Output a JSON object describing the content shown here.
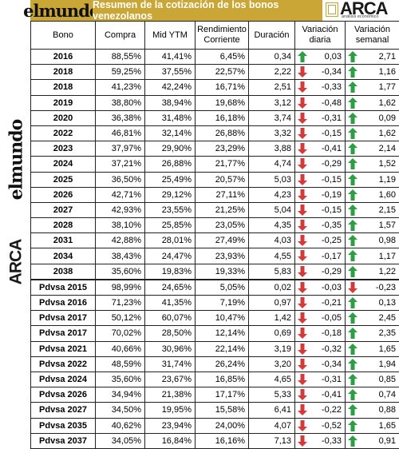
{
  "header": {
    "brand_left": "elmundo",
    "title": "Resumen de la cotización de los bonos venezolanos",
    "brand_right": "ARCA",
    "brand_right_sub": "análisis económico"
  },
  "columns": [
    "Bono",
    "Compra",
    "Mid YTM",
    "Rendimiento Corriente",
    "Duración",
    "Variación diaria",
    "Variación semanal"
  ],
  "rows": [
    {
      "bono": "2016",
      "compra": "88,55%",
      "mid_ytm": "41,41%",
      "rendimiento": "6,45%",
      "duracion": "0,34",
      "diaria": "0,03",
      "diaria_dir": "up",
      "semanal": "2,71",
      "semanal_dir": "up"
    },
    {
      "bono": "2018",
      "compra": "59,25%",
      "mid_ytm": "37,55%",
      "rendimiento": "22,57%",
      "duracion": "2,22",
      "diaria": "-0,34",
      "diaria_dir": "down",
      "semanal": "1,16",
      "semanal_dir": "up"
    },
    {
      "bono": "2018",
      "compra": "41,23%",
      "mid_ytm": "42,24%",
      "rendimiento": "16,71%",
      "duracion": "2,51",
      "diaria": "-0,33",
      "diaria_dir": "down",
      "semanal": "1,77",
      "semanal_dir": "up"
    },
    {
      "bono": "2019",
      "compra": "38,80%",
      "mid_ytm": "38,94%",
      "rendimiento": "19,68%",
      "duracion": "3,12",
      "diaria": "-0,48",
      "diaria_dir": "down",
      "semanal": "1,62",
      "semanal_dir": "up"
    },
    {
      "bono": "2020",
      "compra": "36,38%",
      "mid_ytm": "31,48%",
      "rendimiento": "16,18%",
      "duracion": "3,74",
      "diaria": "-0,31",
      "diaria_dir": "down",
      "semanal": "0,09",
      "semanal_dir": "up"
    },
    {
      "bono": "2022",
      "compra": "46,81%",
      "mid_ytm": "32,14%",
      "rendimiento": "26,88%",
      "duracion": "3,32",
      "diaria": "-0,15",
      "diaria_dir": "down",
      "semanal": "1,62",
      "semanal_dir": "up"
    },
    {
      "bono": "2023",
      "compra": "37,97%",
      "mid_ytm": "29,90%",
      "rendimiento": "23,29%",
      "duracion": "3,88",
      "diaria": "-0,41",
      "diaria_dir": "down",
      "semanal": "2,14",
      "semanal_dir": "up"
    },
    {
      "bono": "2024",
      "compra": "37,21%",
      "mid_ytm": "26,88%",
      "rendimiento": "21,77%",
      "duracion": "4,74",
      "diaria": "-0,29",
      "diaria_dir": "down",
      "semanal": "1,52",
      "semanal_dir": "up"
    },
    {
      "bono": "2025",
      "compra": "36,50%",
      "mid_ytm": "25,49%",
      "rendimiento": "20,57%",
      "duracion": "5,03",
      "diaria": "-0,15",
      "diaria_dir": "down",
      "semanal": "1,19",
      "semanal_dir": "up"
    },
    {
      "bono": "2026",
      "compra": "42,71%",
      "mid_ytm": "29,12%",
      "rendimiento": "27,11%",
      "duracion": "4,23",
      "diaria": "-0,19",
      "diaria_dir": "down",
      "semanal": "1,60",
      "semanal_dir": "up"
    },
    {
      "bono": "2027",
      "compra": "42,93%",
      "mid_ytm": "23,55%",
      "rendimiento": "21,25%",
      "duracion": "5,04",
      "diaria": "-0,15",
      "diaria_dir": "down",
      "semanal": "2,15",
      "semanal_dir": "up"
    },
    {
      "bono": "2028",
      "compra": "38,10%",
      "mid_ytm": "25,85%",
      "rendimiento": "23,05%",
      "duracion": "4,35",
      "diaria": "-0,35",
      "diaria_dir": "down",
      "semanal": "1,57",
      "semanal_dir": "up"
    },
    {
      "bono": "2031",
      "compra": "42,88%",
      "mid_ytm": "28,01%",
      "rendimiento": "27,49%",
      "duracion": "4,03",
      "diaria": "-0,25",
      "diaria_dir": "down",
      "semanal": "0,98",
      "semanal_dir": "up"
    },
    {
      "bono": "2034",
      "compra": "38,43%",
      "mid_ytm": "24,47%",
      "rendimiento": "23,93%",
      "duracion": "4,55",
      "diaria": "-0,17",
      "diaria_dir": "down",
      "semanal": "1,17",
      "semanal_dir": "up"
    },
    {
      "bono": "2038",
      "compra": "35,60%",
      "mid_ytm": "19,83%",
      "rendimiento": "19,33%",
      "duracion": "5,83",
      "diaria": "-0,29",
      "diaria_dir": "down",
      "semanal": "1,22",
      "semanal_dir": "up"
    },
    {
      "bono": "Pdvsa 2015",
      "compra": "98,99%",
      "mid_ytm": "24,65%",
      "rendimiento": "5,05%",
      "duracion": "0,02",
      "diaria": "-0,03",
      "diaria_dir": "down",
      "semanal": "-0,23",
      "semanal_dir": "down",
      "sep": true
    },
    {
      "bono": "Pdvsa 2016",
      "compra": "71,23%",
      "mid_ytm": "41,35%",
      "rendimiento": "7,19%",
      "duracion": "0,97",
      "diaria": "-0,21",
      "diaria_dir": "down",
      "semanal": "0,13",
      "semanal_dir": "up"
    },
    {
      "bono": "Pdvsa 2017",
      "compra": "50,12%",
      "mid_ytm": "60,07%",
      "rendimiento": "10,47%",
      "duracion": "1,42",
      "diaria": "-0,05",
      "diaria_dir": "down",
      "semanal": "2,45",
      "semanal_dir": "up"
    },
    {
      "bono": "Pdvsa 2017",
      "compra": "70,02%",
      "mid_ytm": "28,50%",
      "rendimiento": "12,14%",
      "duracion": "0,69",
      "diaria": "-0,18",
      "diaria_dir": "down",
      "semanal": "2,35",
      "semanal_dir": "up"
    },
    {
      "bono": "Pdvsa 2021",
      "compra": "40,66%",
      "mid_ytm": "30,96%",
      "rendimiento": "22,14%",
      "duracion": "3,19",
      "diaria": "-0,32",
      "diaria_dir": "down",
      "semanal": "1,65",
      "semanal_dir": "up"
    },
    {
      "bono": "Pdvsa 2022",
      "compra": "48,59%",
      "mid_ytm": "31,74%",
      "rendimiento": "26,24%",
      "duracion": "3,20",
      "diaria": "-0,34",
      "diaria_dir": "down",
      "semanal": "1,94",
      "semanal_dir": "up"
    },
    {
      "bono": "Pdvsa 2024",
      "compra": "35,60%",
      "mid_ytm": "23,67%",
      "rendimiento": "16,85%",
      "duracion": "4,65",
      "diaria": "-0,31",
      "diaria_dir": "down",
      "semanal": "0,85",
      "semanal_dir": "up"
    },
    {
      "bono": "Pdvsa 2026",
      "compra": "34,94%",
      "mid_ytm": "21,38%",
      "rendimiento": "17,17%",
      "duracion": "5,33",
      "diaria": "-0,41",
      "diaria_dir": "down",
      "semanal": "0,74",
      "semanal_dir": "up"
    },
    {
      "bono": "Pdvsa 2027",
      "compra": "34,50%",
      "mid_ytm": "19,95%",
      "rendimiento": "15,58%",
      "duracion": "6,41",
      "diaria": "-0,22",
      "diaria_dir": "down",
      "semanal": "0,88",
      "semanal_dir": "up"
    },
    {
      "bono": "Pdvsa 2035",
      "compra": "40,62%",
      "mid_ytm": "23,94%",
      "rendimiento": "24,00%",
      "duracion": "4,07",
      "diaria": "-0,52",
      "diaria_dir": "down",
      "semanal": "1,65",
      "semanal_dir": "up"
    },
    {
      "bono": "Pdvsa 2037",
      "compra": "34,05%",
      "mid_ytm": "16,84%",
      "rendimiento": "16,16%",
      "duracion": "7,13",
      "diaria": "-0,33",
      "diaria_dir": "down",
      "semanal": "0,91",
      "semanal_dir": "up"
    }
  ],
  "colors": {
    "gold": "#c9a635",
    "up": "#2e9e45",
    "down": "#d33b3b"
  },
  "icons": {
    "up": "arrow-up-icon",
    "down": "arrow-down-icon"
  }
}
